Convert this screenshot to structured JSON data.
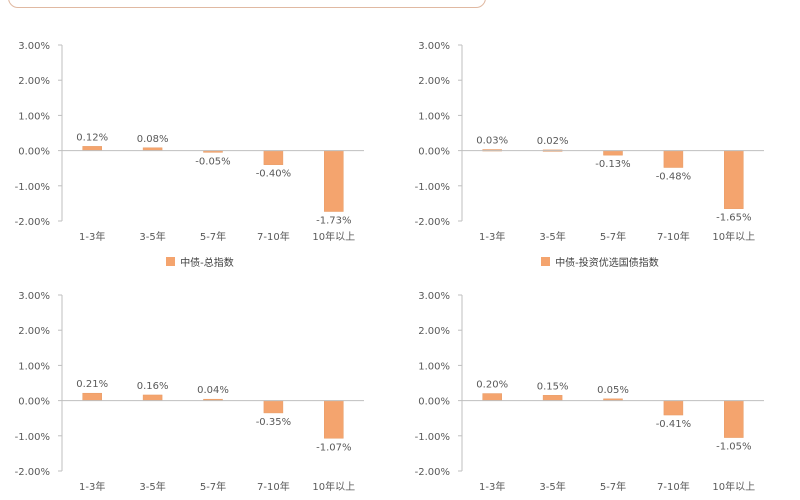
{
  "colors": {
    "bar": "#f4a46e",
    "bar_edge": "#e69a63",
    "axis": "#bfbfbf",
    "text": "#595959"
  },
  "chart_data": [
    {
      "type": "bar",
      "title": "",
      "xlabel": "",
      "ylabel": "",
      "ylim": [
        -0.02,
        0.03
      ],
      "yticks": [
        "3.00%",
        "2.00%",
        "1.00%",
        "0.00%",
        "-1.00%",
        "-2.00%"
      ],
      "categories": [
        "1-3年",
        "3-5年",
        "5-7年",
        "7-10年",
        "10年以上"
      ],
      "series": [
        {
          "name": "中债-总指数",
          "values": [
            0.0012,
            0.0008,
            -0.0005,
            -0.004,
            -0.0173
          ]
        }
      ],
      "data_labels": [
        "0.12%",
        "0.08%",
        "-0.05%",
        "-0.40%",
        "-1.73%"
      ],
      "legend_position": "bottom"
    },
    {
      "type": "bar",
      "title": "",
      "xlabel": "",
      "ylabel": "",
      "ylim": [
        -0.02,
        0.03
      ],
      "yticks": [
        "3.00%",
        "2.00%",
        "1.00%",
        "0.00%",
        "-1.00%",
        "-2.00%"
      ],
      "categories": [
        "1-3年",
        "3-5年",
        "5-7年",
        "7-10年",
        "10年以上"
      ],
      "series": [
        {
          "name": "中债-投资优选国债指数",
          "values": [
            0.0003,
            0.0002,
            -0.0013,
            -0.0048,
            -0.0165
          ]
        }
      ],
      "data_labels": [
        "0.03%",
        "0.02%",
        "-0.13%",
        "-0.48%",
        "-1.65%"
      ],
      "legend_position": "bottom"
    },
    {
      "type": "bar",
      "title": "",
      "xlabel": "",
      "ylabel": "",
      "ylim": [
        -0.02,
        0.03
      ],
      "yticks": [
        "3.00%",
        "2.00%",
        "1.00%",
        "0.00%",
        "-1.00%",
        "-2.00%"
      ],
      "categories": [
        "1-3年",
        "3-5年",
        "5-7年",
        "7-10年",
        "10年以上"
      ],
      "series": [
        {
          "values": [
            0.0021,
            0.0016,
            0.0004,
            -0.0035,
            -0.0107
          ]
        }
      ],
      "data_labels": [
        "0.21%",
        "0.16%",
        "0.04%",
        "-0.35%",
        "-1.07%"
      ]
    },
    {
      "type": "bar",
      "title": "",
      "xlabel": "",
      "ylabel": "",
      "ylim": [
        -0.02,
        0.03
      ],
      "yticks": [
        "3.00%",
        "2.00%",
        "1.00%",
        "0.00%",
        "-1.00%",
        "-2.00%"
      ],
      "categories": [
        "1-3年",
        "3-5年",
        "5-7年",
        "7-10年",
        "10年以上"
      ],
      "series": [
        {
          "values": [
            0.002,
            0.0015,
            0.0005,
            -0.0041,
            -0.0105
          ]
        }
      ],
      "data_labels": [
        "0.20%",
        "0.15%",
        "0.05%",
        "-0.41%",
        "-1.05%"
      ]
    }
  ]
}
